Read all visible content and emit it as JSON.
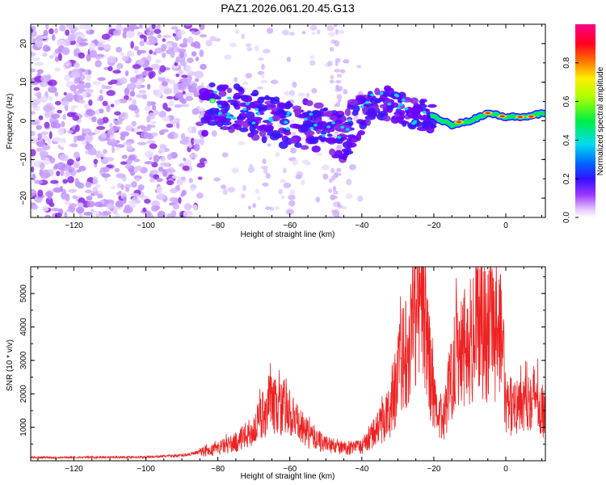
{
  "title": "PAZ1.2026.061.20.45.G13",
  "chart_data": [
    {
      "type": "heatmap",
      "name": "spectrogram",
      "xlabel": "Height of straight line (km)",
      "ylabel": "Frequency (Hz)",
      "xlim": [
        -132,
        11
      ],
      "ylim": [
        -25,
        25
      ],
      "xticks": [
        -120,
        -100,
        -80,
        -60,
        -40,
        -20,
        0
      ],
      "yticks": [
        -20,
        -10,
        0,
        10,
        20
      ],
      "colorbar": {
        "label": "Normalized spectral amplitude",
        "range": [
          0,
          1
        ],
        "ticks": [
          0.0,
          0.2,
          0.4,
          0.6,
          0.8
        ]
      },
      "signal_track_freq_hz": [
        {
          "x": -82,
          "y": 5
        },
        {
          "x": -75,
          "y": 3
        },
        {
          "x": -65,
          "y": 0
        },
        {
          "x": -55,
          "y": -1
        },
        {
          "x": -45,
          "y": -4
        },
        {
          "x": -40,
          "y": 2
        },
        {
          "x": -35,
          "y": 5
        },
        {
          "x": -30,
          "y": 4
        },
        {
          "x": -25,
          "y": 2
        },
        {
          "x": -20,
          "y": 1
        },
        {
          "x": -15,
          "y": -1
        },
        {
          "x": -10,
          "y": 0
        },
        {
          "x": -5,
          "y": 2
        },
        {
          "x": 0,
          "y": 1
        },
        {
          "x": 5,
          "y": 1
        },
        {
          "x": 11,
          "y": 2
        }
      ]
    },
    {
      "type": "line",
      "name": "snr",
      "xlabel": "Height of straight line (km)",
      "ylabel": "SNR (10 * v/v)",
      "xlim": [
        -132,
        11
      ],
      "ylim": [
        0,
        5800
      ],
      "xticks": [
        -120,
        -100,
        -80,
        -60,
        -40,
        -20,
        0
      ],
      "yticks": [
        1000,
        2000,
        3000,
        4000,
        5000
      ],
      "series": [
        {
          "name": "SNR",
          "color": "#ee2222",
          "points": [
            {
              "x": -132,
              "y": 100
            },
            {
              "x": -120,
              "y": 100
            },
            {
              "x": -100,
              "y": 110
            },
            {
              "x": -90,
              "y": 160
            },
            {
              "x": -82,
              "y": 300
            },
            {
              "x": -75,
              "y": 550
            },
            {
              "x": -70,
              "y": 900
            },
            {
              "x": -66,
              "y": 1700
            },
            {
              "x": -63,
              "y": 1600
            },
            {
              "x": -60,
              "y": 1300
            },
            {
              "x": -55,
              "y": 800
            },
            {
              "x": -50,
              "y": 500
            },
            {
              "x": -45,
              "y": 380
            },
            {
              "x": -40,
              "y": 420
            },
            {
              "x": -36,
              "y": 900
            },
            {
              "x": -32,
              "y": 1500
            },
            {
              "x": -29,
              "y": 2900
            },
            {
              "x": -27,
              "y": 3700
            },
            {
              "x": -25,
              "y": 4600
            },
            {
              "x": -23,
              "y": 5000
            },
            {
              "x": -21,
              "y": 2600
            },
            {
              "x": -19,
              "y": 1100
            },
            {
              "x": -17,
              "y": 1400
            },
            {
              "x": -14,
              "y": 3300
            },
            {
              "x": -12,
              "y": 3600
            },
            {
              "x": -10,
              "y": 3400
            },
            {
              "x": -7,
              "y": 4200
            },
            {
              "x": -5,
              "y": 3700
            },
            {
              "x": -3,
              "y": 3900
            },
            {
              "x": -1,
              "y": 3600
            },
            {
              "x": 0,
              "y": 1500
            },
            {
              "x": 3,
              "y": 1800
            },
            {
              "x": 7,
              "y": 2000
            },
            {
              "x": 9,
              "y": 1800
            },
            {
              "x": 11,
              "y": 1400
            }
          ]
        }
      ]
    }
  ]
}
